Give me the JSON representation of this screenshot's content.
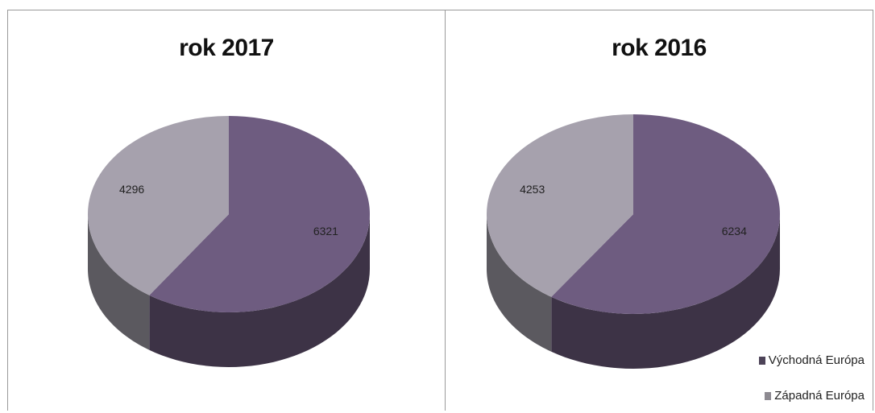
{
  "chart_data": [
    {
      "type": "pie",
      "title": "rok 2017",
      "categories": [
        "Východná Európa",
        "Západná Európa"
      ],
      "values": [
        6321,
        4296
      ],
      "colors": [
        "#6e5c80",
        "#a6a1ad"
      ]
    },
    {
      "type": "pie",
      "title": "rok 2016",
      "categories": [
        "Východná Európa",
        "Západná Európa"
      ],
      "values": [
        6234,
        4253
      ],
      "colors": [
        "#6e5c80",
        "#a6a1ad"
      ]
    }
  ],
  "legend": {
    "placement": "bottom-right",
    "items": [
      {
        "label": "Východná Európa",
        "color": "#4d4358"
      },
      {
        "label": "Západná Európa",
        "color": "#8d8a91"
      }
    ]
  }
}
